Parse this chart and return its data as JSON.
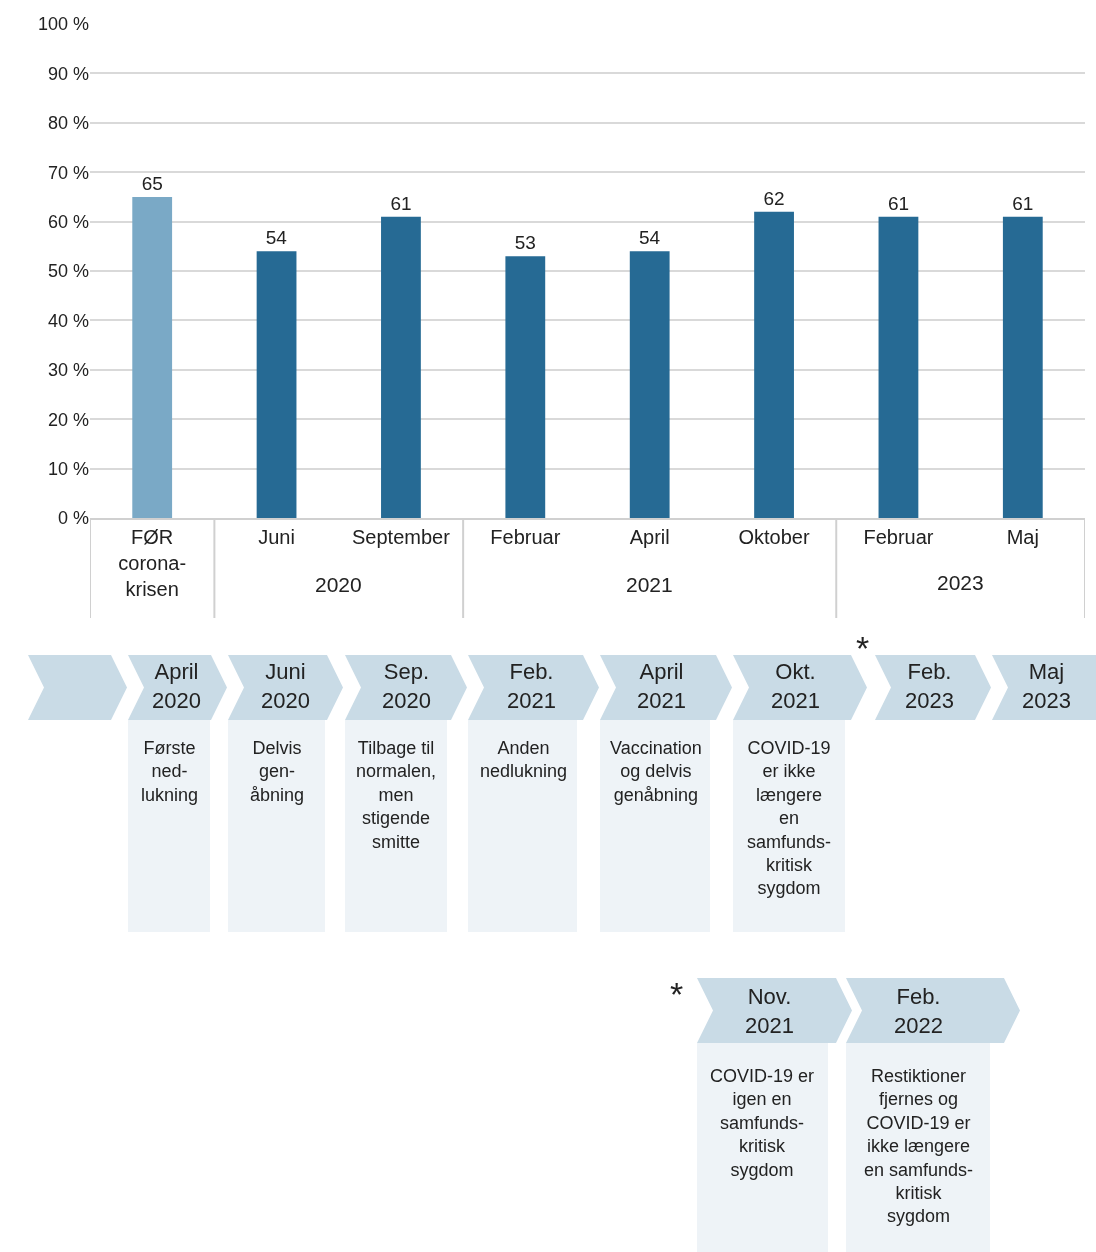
{
  "chart_data": {
    "type": "bar",
    "categories": [
      "FØR\ncorona-\nkrisen",
      "Juni",
      "September",
      "Februar",
      "April",
      "Oktober",
      "Februar",
      "Maj"
    ],
    "values": [
      65,
      54,
      61,
      53,
      54,
      62,
      61,
      61
    ],
    "colors": [
      "#7aa9c6",
      "#266a94",
      "#266a94",
      "#266a94",
      "#266a94",
      "#266a94",
      "#266a94",
      "#266a94"
    ],
    "data_labels": true,
    "ylim": [
      0,
      100
    ],
    "yticks": [
      {
        "value": 0,
        "label": "0 %"
      },
      {
        "value": 10,
        "label": "10 %"
      },
      {
        "value": 20,
        "label": "20 %"
      },
      {
        "value": 30,
        "label": "30 %"
      },
      {
        "value": 40,
        "label": "40 %"
      },
      {
        "value": 50,
        "label": "50 %"
      },
      {
        "value": 60,
        "label": "60 %"
      },
      {
        "value": 70,
        "label": "70 %"
      },
      {
        "value": 80,
        "label": "80 %"
      },
      {
        "value": 90,
        "label": "90 %"
      },
      {
        "value": 100,
        "label": "100 %"
      }
    ],
    "grid": "y",
    "annotations": [
      "2020",
      "2021",
      "2023",
      "April\n2020",
      "Juni\n2020",
      "Sep.\n2020",
      "Feb.\n2021",
      "April\n2021",
      "Okt.\n2021",
      "Feb.\n2023",
      "Maj\n2023",
      "Første\nned-\nlukning",
      "Delvis\ngen-\nåbning",
      "Tilbage til\nnormalen,\nmen\nstigende\nsmitte",
      "Anden\nnedlukning",
      "Vaccination\nog delvis\ngenåbning",
      "COVID-19\ner ikke\nlængere\nen\nsamfunds-\nkritisk\nsygdom",
      "*",
      "Nov.\n2021",
      "Feb.\n2022",
      "COVID-19 er\nigen en\nsamfunds-\nkritisk\nsygdom",
      "Restiktioner\nfjernes og\nCOVID-19 er\nikke længere\nen samfunds-\nkritisk\nsygdom",
      "*"
    ]
  }
}
